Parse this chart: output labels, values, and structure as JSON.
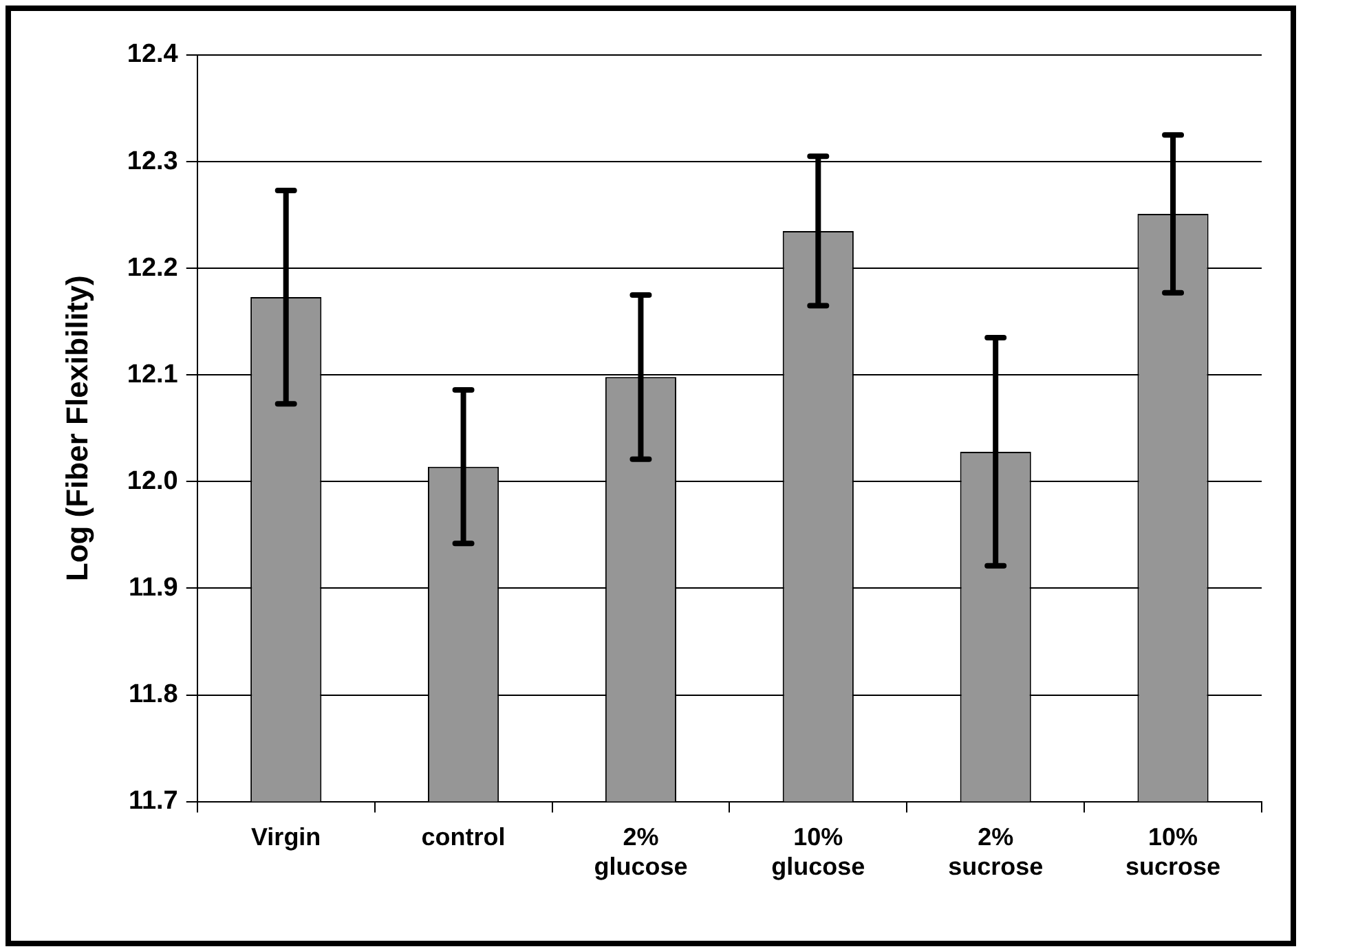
{
  "chart_data": {
    "type": "bar",
    "ylabel": "Log (Fiber Flexibility)",
    "categories": [
      "Virgin",
      "control",
      "2% glucose",
      "10% glucose",
      "2% sucrose",
      "10% sucrose"
    ],
    "values": [
      12.173,
      12.014,
      12.098,
      12.235,
      12.028,
      12.251
    ],
    "errors": [
      0.1,
      0.072,
      0.077,
      0.07,
      0.107,
      0.074
    ],
    "color": "#969696",
    "ylim": [
      11.7,
      12.4
    ],
    "yticks": [
      {
        "value": 11.7,
        "label": "11.7"
      },
      {
        "value": 11.8,
        "label": "11.8"
      },
      {
        "value": 11.9,
        "label": "11.9"
      },
      {
        "value": 12.0,
        "label": "12.0"
      },
      {
        "value": 12.1,
        "label": "12.1"
      },
      {
        "value": 12.2,
        "label": "12.2"
      },
      {
        "value": 12.3,
        "label": "12.3"
      },
      {
        "value": 12.4,
        "label": "12.4"
      }
    ],
    "grid": "y",
    "legend": false
  }
}
